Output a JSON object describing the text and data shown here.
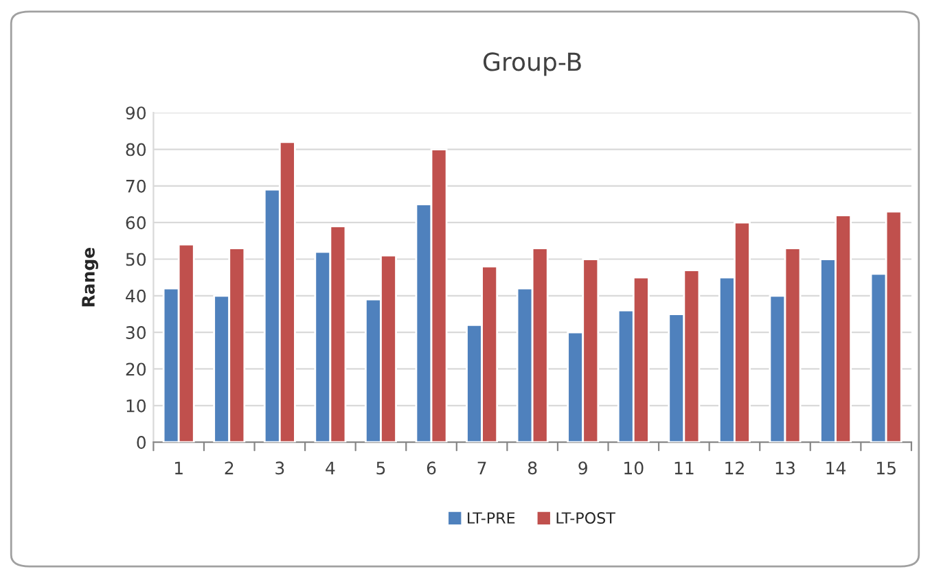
{
  "chart_data": {
    "type": "bar",
    "title": "Group-B",
    "ylabel": "Range",
    "categories": [
      "1",
      "2",
      "3",
      "4",
      "5",
      "6",
      "7",
      "8",
      "9",
      "10",
      "11",
      "12",
      "13",
      "14",
      "15"
    ],
    "series": [
      {
        "name": "LT-PRE",
        "color": "#4f81bd",
        "values": [
          42,
          40,
          69,
          52,
          39,
          65,
          32,
          42,
          30,
          36,
          35,
          45,
          40,
          50,
          46
        ]
      },
      {
        "name": "LT-POST",
        "color": "#c0504d",
        "values": [
          54,
          53,
          82,
          59,
          51,
          80,
          48,
          53,
          50,
          45,
          47,
          60,
          53,
          62,
          63
        ]
      }
    ],
    "ylim": [
      0,
      90
    ],
    "yticks": [
      0,
      10,
      20,
      30,
      40,
      50,
      60,
      70,
      80,
      90
    ],
    "grid": "y",
    "legend": "bottom"
  }
}
